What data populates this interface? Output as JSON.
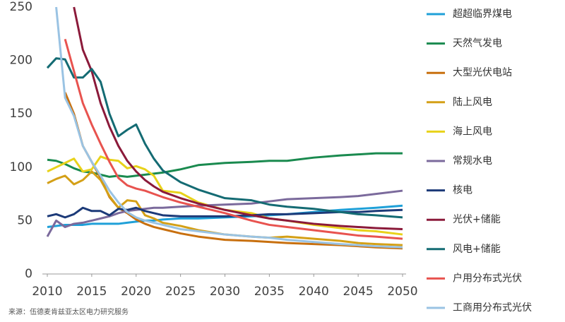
{
  "chart_data": {
    "type": "line",
    "source": "来源：伍德麦肯兹亚太区电力研究服务",
    "x": [
      2010,
      2011,
      2012,
      2013,
      2014,
      2015,
      2016,
      2017,
      2018,
      2019,
      2020,
      2021,
      2022,
      2023,
      2025,
      2027,
      2030,
      2033,
      2035,
      2037,
      2040,
      2043,
      2045,
      2047,
      2050
    ],
    "xlim": [
      2010,
      2050
    ],
    "xticks": [
      2010,
      2015,
      2020,
      2025,
      2030,
      2035,
      2040,
      2045,
      2050
    ],
    "ylim": [
      0,
      250
    ],
    "yticks": [
      0,
      50,
      100,
      150,
      200,
      250
    ],
    "grid": false,
    "legend": "right",
    "series": [
      {
        "name": "超超临界煤电",
        "color": "#1fa0d8",
        "values": [
          44,
          45,
          46,
          46,
          46,
          47,
          47,
          47,
          47,
          48,
          49,
          50,
          50,
          51,
          52,
          52,
          53,
          54,
          55,
          56,
          58,
          60,
          61,
          62,
          64
        ]
      },
      {
        "name": "天然气发电",
        "color": "#1a8a4f",
        "values": [
          107,
          106,
          103,
          99,
          96,
          95,
          93,
          91,
          92,
          91,
          92,
          93,
          94,
          95,
          98,
          102,
          104,
          105,
          106,
          106,
          109,
          111,
          112,
          113,
          113
        ]
      },
      {
        "name": "大型光伏电站",
        "color": "#c8700f",
        "values": [
          null,
          null,
          170,
          150,
          120,
          105,
          90,
          72,
          62,
          57,
          51,
          47,
          44,
          42,
          38,
          35,
          32,
          31,
          30,
          29,
          28,
          27,
          26,
          25,
          24
        ]
      },
      {
        "name": "陆上风电",
        "color": "#d4a017",
        "values": [
          85,
          89,
          92,
          84,
          88,
          96,
          88,
          73,
          62,
          69,
          68,
          55,
          52,
          48,
          45,
          41,
          37,
          35,
          34,
          35,
          33,
          31,
          29,
          28,
          27
        ]
      },
      {
        "name": "海上风电",
        "color": "#e8d21a",
        "values": [
          96,
          100,
          104,
          108,
          96,
          98,
          110,
          107,
          106,
          99,
          101,
          98,
          92,
          78,
          76,
          67,
          60,
          57,
          52,
          50,
          46,
          43,
          41,
          40,
          37
        ]
      },
      {
        "name": "常规水电",
        "color": "#7b6a9c",
        "values": [
          35,
          50,
          44,
          47,
          48,
          50,
          52,
          54,
          57,
          59,
          60,
          61,
          62,
          62,
          63,
          64,
          65,
          66,
          68,
          70,
          71,
          72,
          73,
          75,
          78
        ]
      },
      {
        "name": "核电",
        "color": "#1c3a78",
        "values": [
          54,
          56,
          53,
          56,
          62,
          59,
          59,
          55,
          61,
          60,
          62,
          59,
          57,
          55,
          54,
          54,
          54,
          55,
          56,
          56,
          57,
          58,
          58,
          59,
          60
        ]
      },
      {
        "name": "光伏+储能",
        "color": "#8b1a3a",
        "values": [
          null,
          null,
          null,
          250,
          210,
          190,
          160,
          138,
          120,
          106,
          96,
          88,
          82,
          77,
          71,
          66,
          60,
          55,
          52,
          50,
          47,
          45,
          44,
          43,
          42
        ]
      },
      {
        "name": "风电+储能",
        "color": "#146b73",
        "values": [
          193,
          202,
          201,
          184,
          184,
          192,
          180,
          150,
          129,
          135,
          140,
          122,
          108,
          97,
          86,
          79,
          71,
          69,
          65,
          63,
          61,
          58,
          56,
          55,
          53
        ]
      },
      {
        "name": "户用分布式光伏",
        "color": "#e8534f",
        "values": [
          null,
          null,
          220,
          190,
          160,
          140,
          122,
          105,
          90,
          83,
          80,
          78,
          75,
          72,
          67,
          63,
          57,
          50,
          46,
          44,
          41,
          38,
          36,
          35,
          33
        ]
      },
      {
        "name": "工商用分布式光伏",
        "color": "#9ac3e3",
        "values": [
          null,
          250,
          165,
          148,
          120,
          105,
          92,
          78,
          67,
          58,
          53,
          50,
          48,
          46,
          42,
          40,
          37,
          35,
          34,
          32,
          30,
          28,
          27,
          26,
          25
        ]
      }
    ]
  }
}
